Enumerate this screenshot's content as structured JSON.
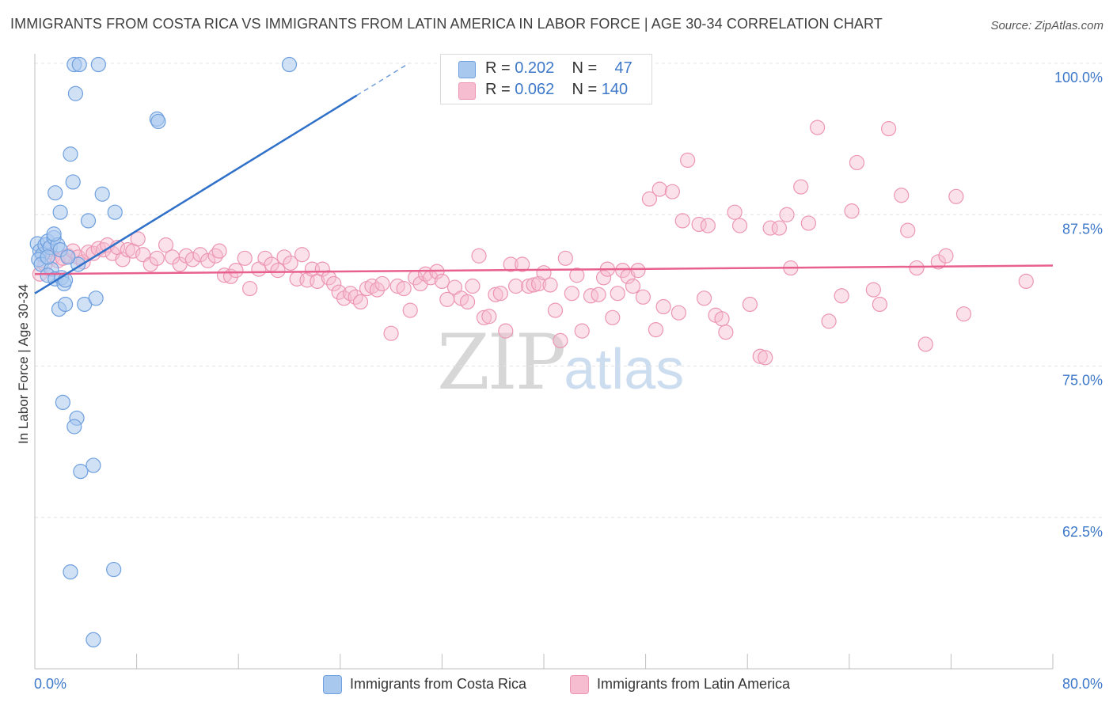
{
  "title": "IMMIGRANTS FROM COSTA RICA VS IMMIGRANTS FROM LATIN AMERICA IN LABOR FORCE | AGE 30-34 CORRELATION CHART",
  "source": "Source: ZipAtlas.com",
  "watermark": {
    "zip": "ZIP",
    "atlas": "atlas"
  },
  "legend_top": [
    {
      "r_label": "R = ",
      "r_value": "0.202",
      "n_label": "N = ",
      "n_value": "47"
    },
    {
      "r_label": "R = ",
      "r_value": "0.062",
      "n_label": "N = ",
      "n_value": "140"
    }
  ],
  "colors": {
    "blue_fill": "#a9c8ee",
    "blue_stroke": "#6e9fde",
    "blue_line": "#2f70c9",
    "pink_fill": "#f6bdd0",
    "pink_stroke": "#ec96b3",
    "pink_line": "#e8608f",
    "axis_text": "#3d78c9",
    "grid": "#e3e3e3"
  },
  "chart_data": {
    "type": "scatter",
    "title": "IMMIGRANTS FROM COSTA RICA VS IMMIGRANTS FROM LATIN AMERICA IN LABOR FORCE | AGE 30-34 CORRELATION CHART",
    "xlabel": "",
    "ylabel": "In Labor Force | Age 30-34",
    "xlim": [
      0,
      80
    ],
    "ylim": [
      50,
      100
    ],
    "x_tick_labels": [
      "0.0%",
      "80.0%"
    ],
    "y_tick_labels": [
      "100.0%",
      "87.5%",
      "75.0%",
      "62.5%"
    ],
    "y_tick_values": [
      100,
      87.5,
      75,
      62.5
    ],
    "grid": true,
    "legend_position": "bottom",
    "series": [
      {
        "name": "Immigrants from Costa Rica",
        "color": "#a9c8ee",
        "r": 0.202,
        "n": 47,
        "trend": {
          "x": [
            0,
            29.4
          ],
          "y": [
            81.0,
            100.0
          ],
          "solid_until_x": 25.3
        },
        "points": [
          [
            0.2,
            85.1
          ],
          [
            0.4,
            84.5
          ],
          [
            0.6,
            84.2
          ],
          [
            0.3,
            83.8
          ],
          [
            0.5,
            83.4
          ],
          [
            0.8,
            85.0
          ],
          [
            1.0,
            85.3
          ],
          [
            1.2,
            84.8
          ],
          [
            1.5,
            85.6
          ],
          [
            1.8,
            85.0
          ],
          [
            2.0,
            84.6
          ],
          [
            1.3,
            83.0
          ],
          [
            1.0,
            82.5
          ],
          [
            1.6,
            82.2
          ],
          [
            2.1,
            82.3
          ],
          [
            2.3,
            81.8
          ],
          [
            2.4,
            82.1
          ],
          [
            3.4,
            83.4
          ],
          [
            1.9,
            79.7
          ],
          [
            2.4,
            80.1
          ],
          [
            3.9,
            80.1
          ],
          [
            4.8,
            80.6
          ],
          [
            3.1,
            99.9
          ],
          [
            3.5,
            99.9
          ],
          [
            5.0,
            99.9
          ],
          [
            20.0,
            99.9
          ],
          [
            3.2,
            97.5
          ],
          [
            9.6,
            95.4
          ],
          [
            9.7,
            95.2
          ],
          [
            2.8,
            92.5
          ],
          [
            3.0,
            90.2
          ],
          [
            1.6,
            89.3
          ],
          [
            5.3,
            89.2
          ],
          [
            2.0,
            87.7
          ],
          [
            6.3,
            87.7
          ],
          [
            4.2,
            87.0
          ],
          [
            1.5,
            85.9
          ],
          [
            2.2,
            72.0
          ],
          [
            3.3,
            70.7
          ],
          [
            3.1,
            70.0
          ],
          [
            3.6,
            66.3
          ],
          [
            4.6,
            66.8
          ],
          [
            2.8,
            58.0
          ],
          [
            6.2,
            58.2
          ],
          [
            4.6,
            52.4
          ],
          [
            1.0,
            84.0
          ],
          [
            2.6,
            84.0
          ]
        ]
      },
      {
        "name": "Immigrants from Latin America",
        "color": "#f6bdd0",
        "r": 0.062,
        "n": 140,
        "trend": {
          "x": [
            0,
            80
          ],
          "y": [
            82.6,
            83.3
          ]
        },
        "points": [
          [
            0.4,
            82.6
          ],
          [
            0.8,
            83.4
          ],
          [
            1.0,
            84.6
          ],
          [
            1.4,
            84.0
          ],
          [
            1.8,
            83.7
          ],
          [
            2.2,
            83.9
          ],
          [
            2.6,
            84.1
          ],
          [
            3.0,
            84.5
          ],
          [
            3.4,
            84.0
          ],
          [
            3.8,
            83.6
          ],
          [
            4.2,
            84.4
          ],
          [
            4.6,
            84.3
          ],
          [
            5.0,
            84.7
          ],
          [
            5.4,
            84.6
          ],
          [
            5.7,
            85.0
          ],
          [
            6.1,
            84.3
          ],
          [
            6.5,
            84.8
          ],
          [
            6.9,
            83.8
          ],
          [
            7.3,
            84.6
          ],
          [
            7.7,
            84.5
          ],
          [
            8.1,
            85.5
          ],
          [
            8.5,
            84.2
          ],
          [
            9.1,
            83.4
          ],
          [
            9.6,
            83.9
          ],
          [
            10.3,
            85.0
          ],
          [
            10.8,
            84.0
          ],
          [
            11.4,
            83.4
          ],
          [
            11.9,
            84.1
          ],
          [
            12.4,
            83.8
          ],
          [
            13.0,
            84.2
          ],
          [
            13.6,
            83.7
          ],
          [
            14.2,
            84.1
          ],
          [
            14.5,
            84.5
          ],
          [
            14.9,
            82.5
          ],
          [
            15.4,
            82.4
          ],
          [
            15.8,
            82.9
          ],
          [
            16.5,
            83.9
          ],
          [
            16.9,
            81.4
          ],
          [
            17.6,
            83.0
          ],
          [
            18.1,
            83.9
          ],
          [
            18.6,
            83.4
          ],
          [
            19.1,
            82.9
          ],
          [
            19.6,
            84.0
          ],
          [
            20.1,
            83.5
          ],
          [
            20.6,
            82.2
          ],
          [
            21.0,
            84.2
          ],
          [
            21.4,
            82.1
          ],
          [
            21.8,
            83.0
          ],
          [
            22.2,
            82.0
          ],
          [
            22.6,
            83.0
          ],
          [
            23.1,
            82.3
          ],
          [
            23.5,
            81.8
          ],
          [
            23.9,
            81.1
          ],
          [
            24.3,
            80.6
          ],
          [
            24.8,
            81.0
          ],
          [
            25.2,
            80.7
          ],
          [
            25.6,
            80.3
          ],
          [
            26.1,
            81.4
          ],
          [
            26.5,
            81.6
          ],
          [
            26.9,
            81.3
          ],
          [
            27.3,
            81.8
          ],
          [
            28.0,
            77.7
          ],
          [
            28.5,
            81.6
          ],
          [
            29.0,
            81.4
          ],
          [
            29.5,
            79.6
          ],
          [
            29.9,
            82.3
          ],
          [
            30.3,
            81.8
          ],
          [
            30.7,
            82.6
          ],
          [
            31.1,
            82.3
          ],
          [
            31.6,
            82.8
          ],
          [
            32.0,
            82.0
          ],
          [
            32.4,
            80.5
          ],
          [
            33.0,
            81.5
          ],
          [
            33.5,
            80.6
          ],
          [
            34.0,
            80.3
          ],
          [
            34.4,
            81.6
          ],
          [
            34.9,
            84.1
          ],
          [
            35.3,
            79.0
          ],
          [
            35.7,
            79.1
          ],
          [
            36.2,
            80.9
          ],
          [
            36.6,
            81.0
          ],
          [
            37.0,
            77.9
          ],
          [
            37.4,
            83.4
          ],
          [
            37.8,
            81.6
          ],
          [
            38.3,
            83.4
          ],
          [
            38.8,
            81.6
          ],
          [
            39.2,
            81.7
          ],
          [
            39.6,
            81.8
          ],
          [
            40.0,
            82.7
          ],
          [
            40.5,
            81.7
          ],
          [
            40.9,
            79.6
          ],
          [
            41.3,
            77.1
          ],
          [
            41.7,
            83.9
          ],
          [
            42.2,
            81.0
          ],
          [
            42.6,
            82.5
          ],
          [
            43.0,
            77.9
          ],
          [
            43.7,
            80.8
          ],
          [
            44.3,
            80.9
          ],
          [
            44.7,
            82.3
          ],
          [
            45.0,
            83.0
          ],
          [
            45.4,
            79.0
          ],
          [
            45.8,
            81.0
          ],
          [
            46.2,
            82.9
          ],
          [
            46.6,
            82.4
          ],
          [
            47.0,
            81.6
          ],
          [
            47.4,
            82.9
          ],
          [
            47.8,
            80.7
          ],
          [
            48.3,
            88.8
          ],
          [
            48.8,
            78.0
          ],
          [
            49.1,
            89.6
          ],
          [
            49.4,
            79.9
          ],
          [
            50.1,
            89.4
          ],
          [
            50.6,
            79.4
          ],
          [
            50.9,
            87.0
          ],
          [
            51.3,
            92.0
          ],
          [
            52.2,
            86.7
          ],
          [
            52.6,
            80.6
          ],
          [
            52.9,
            86.6
          ],
          [
            53.5,
            79.2
          ],
          [
            54.0,
            78.9
          ],
          [
            54.3,
            77.8
          ],
          [
            55.0,
            87.7
          ],
          [
            55.4,
            86.6
          ],
          [
            56.2,
            80.1
          ],
          [
            57.0,
            75.8
          ],
          [
            57.4,
            75.7
          ],
          [
            57.8,
            86.4
          ],
          [
            58.5,
            86.4
          ],
          [
            59.1,
            87.5
          ],
          [
            59.4,
            83.1
          ],
          [
            60.2,
            89.8
          ],
          [
            60.8,
            86.8
          ],
          [
            61.5,
            94.7
          ],
          [
            62.4,
            78.7
          ],
          [
            63.4,
            80.8
          ],
          [
            64.2,
            87.8
          ],
          [
            64.6,
            91.8
          ],
          [
            65.9,
            81.3
          ],
          [
            66.4,
            80.1
          ],
          [
            67.1,
            94.6
          ],
          [
            68.1,
            89.1
          ],
          [
            68.6,
            86.2
          ],
          [
            69.3,
            83.1
          ],
          [
            70.0,
            76.8
          ]
        ]
      }
    ],
    "extra_pink_points": [
      [
        71.0,
        83.6
      ],
      [
        71.6,
        84.1
      ],
      [
        72.4,
        89.0
      ],
      [
        73.0,
        79.3
      ],
      [
        77.9,
        82.0
      ]
    ]
  },
  "bottom_legend": [
    {
      "label": "Immigrants from Costa Rica"
    },
    {
      "label": "Immigrants from Latin America"
    }
  ]
}
